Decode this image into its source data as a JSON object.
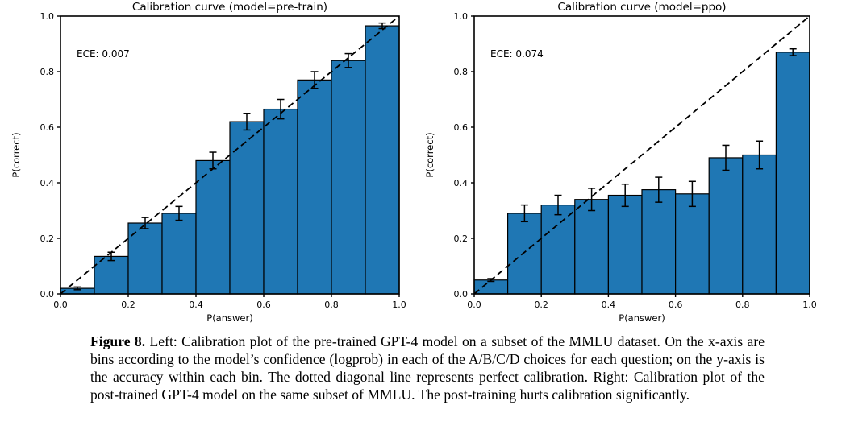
{
  "page": {
    "background": "#ffffff"
  },
  "chart_data": [
    {
      "type": "bar",
      "title": "Calibration curve (model=pre-train)",
      "annotation": "ECE: 0.007",
      "xlabel": "P(answer)",
      "ylabel": "P(correct)",
      "xlim": [
        0.0,
        1.0
      ],
      "ylim": [
        0.0,
        1.0
      ],
      "xtick_labels": [
        "0.0",
        "0.2",
        "0.4",
        "0.6",
        "0.8",
        "1.0"
      ],
      "ytick_labels": [
        "0.0",
        "0.2",
        "0.4",
        "0.6",
        "0.8",
        "1.0"
      ],
      "grid": false,
      "legend": null,
      "bar_color": "#1f77b4",
      "bar_edge_color": "#000000",
      "diagonal_line": "dashed y=x (perfect calibration)",
      "bin_edges": [
        0.0,
        0.1,
        0.2,
        0.3,
        0.4,
        0.5,
        0.6,
        0.7,
        0.8,
        0.9,
        1.0
      ],
      "values": [
        0.02,
        0.135,
        0.255,
        0.29,
        0.48,
        0.62,
        0.665,
        0.77,
        0.84,
        0.965
      ],
      "errors": [
        0.005,
        0.015,
        0.02,
        0.025,
        0.03,
        0.03,
        0.035,
        0.03,
        0.025,
        0.01
      ]
    },
    {
      "type": "bar",
      "title": "Calibration curve (model=ppo)",
      "annotation": "ECE: 0.074",
      "xlabel": "P(answer)",
      "ylabel": "P(correct)",
      "xlim": [
        0.0,
        1.0
      ],
      "ylim": [
        0.0,
        1.0
      ],
      "xtick_labels": [
        "0.0",
        "0.2",
        "0.4",
        "0.6",
        "0.8",
        "1.0"
      ],
      "ytick_labels": [
        "0.0",
        "0.2",
        "0.4",
        "0.6",
        "0.8",
        "1.0"
      ],
      "grid": false,
      "legend": null,
      "bar_color": "#1f77b4",
      "bar_edge_color": "#000000",
      "diagonal_line": "dashed y=x (perfect calibration)",
      "bin_edges": [
        0.0,
        0.1,
        0.2,
        0.3,
        0.4,
        0.5,
        0.6,
        0.7,
        0.8,
        0.9,
        1.0
      ],
      "values": [
        0.05,
        0.29,
        0.32,
        0.34,
        0.355,
        0.375,
        0.36,
        0.49,
        0.5,
        0.87
      ],
      "errors": [
        0.005,
        0.03,
        0.035,
        0.04,
        0.04,
        0.045,
        0.045,
        0.045,
        0.05,
        0.012
      ]
    }
  ],
  "caption": {
    "label": "Figure 8.",
    "body": "Left: Calibration plot of the pre-trained GPT-4 model on a subset of the MMLU dataset. On the x-axis are bins according to the model’s confidence (logprob) in each of the A/B/C/D choices for each question; on the y-axis is the accuracy within each bin. The dotted diagonal line represents perfect calibration. Right: Calibration plot of the post-trained GPT-4 model on the same subset of MMLU. The post-training hurts calibration significantly."
  }
}
